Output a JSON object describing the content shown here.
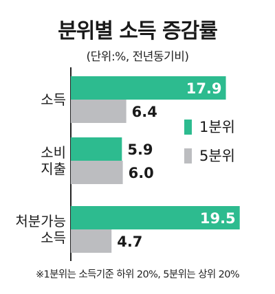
{
  "title": "분위별 소득 증감률",
  "subtitle": "(단위:%, 전년동기비)",
  "footnote": "※1분위는 소득기준 하위 20%, 5분위는 상위 20%",
  "colors": {
    "q1": "#2dbb8f",
    "q5": "#bcbdc0",
    "axis": "#222222"
  },
  "chart_data": {
    "type": "bar",
    "orientation": "horizontal",
    "categories": [
      [
        "소득"
      ],
      [
        "소비",
        "지출"
      ],
      [
        "처분가능",
        "소득"
      ]
    ],
    "series": [
      {
        "name": "1분위",
        "values": [
          17.9,
          5.9,
          19.5
        ]
      },
      {
        "name": "5분위",
        "values": [
          6.4,
          6.0,
          4.7
        ]
      }
    ],
    "value_labels": [
      [
        "17.9",
        "5.9",
        "19.5"
      ],
      [
        "6.4",
        "6.0",
        "4.7"
      ]
    ],
    "xlim": [
      0,
      20
    ],
    "grid": false,
    "legend": "right"
  }
}
